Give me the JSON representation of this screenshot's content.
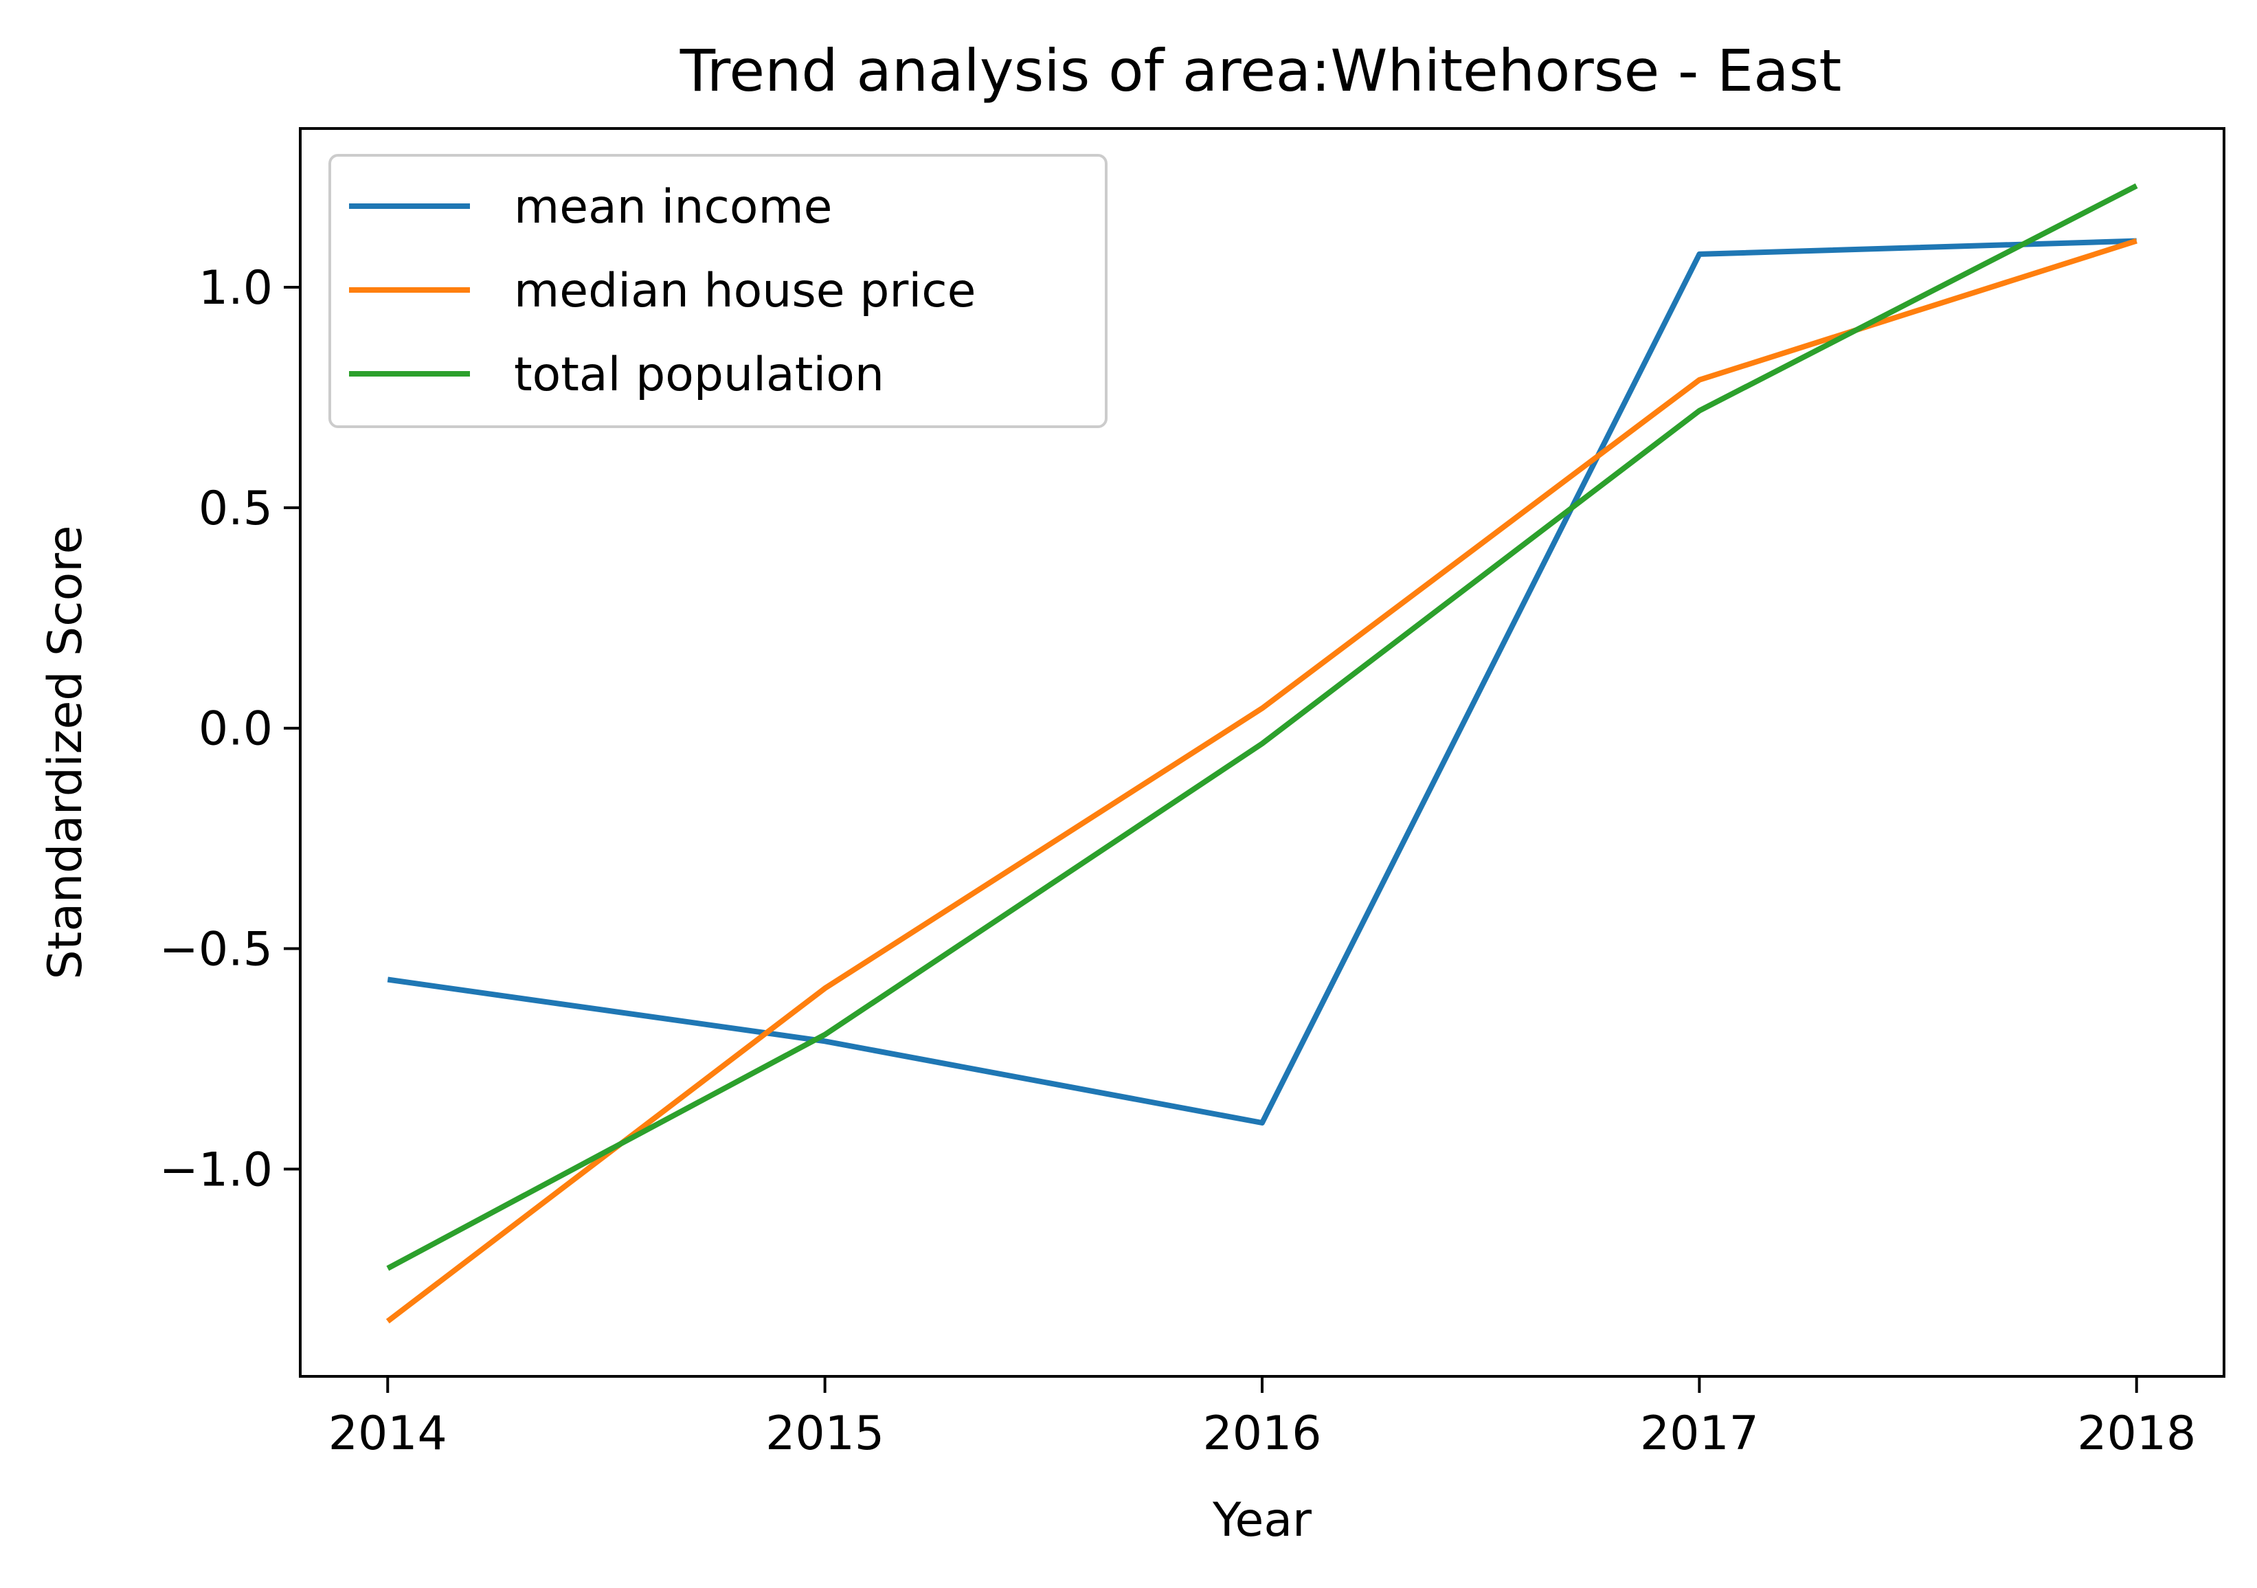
{
  "chart_data": {
    "type": "line",
    "title": "Trend analysis of area:Whitehorse - East",
    "xlabel": "Year",
    "ylabel": "Standardized Score",
    "x": [
      2014,
      2015,
      2016,
      2017,
      2018
    ],
    "x_ticks": [
      "2014",
      "2015",
      "2016",
      "2017",
      "2018"
    ],
    "y_ticks": [
      {
        "value": 1.0,
        "label": "1.0"
      },
      {
        "value": 0.5,
        "label": "0.5"
      },
      {
        "value": 0.0,
        "label": "0.0"
      },
      {
        "value": -0.5,
        "label": "−0.5"
      },
      {
        "value": -1.0,
        "label": "−1.0"
      }
    ],
    "xlim": [
      2013.8,
      2018.2
    ],
    "ylim": [
      -1.47,
      1.36
    ],
    "grid": false,
    "legend_position": "upper-left",
    "series": [
      {
        "name": "mean income",
        "color": "#1f77b4",
        "values": [
          -0.57,
          -0.71,
          -0.895,
          1.075,
          1.105
        ]
      },
      {
        "name": "median house price",
        "color": "#ff7f0e",
        "values": [
          -1.345,
          -0.59,
          0.045,
          0.79,
          1.105
        ]
      },
      {
        "name": "total population",
        "color": "#2ca02c",
        "values": [
          -1.225,
          -0.695,
          -0.035,
          0.72,
          1.23
        ]
      }
    ]
  }
}
